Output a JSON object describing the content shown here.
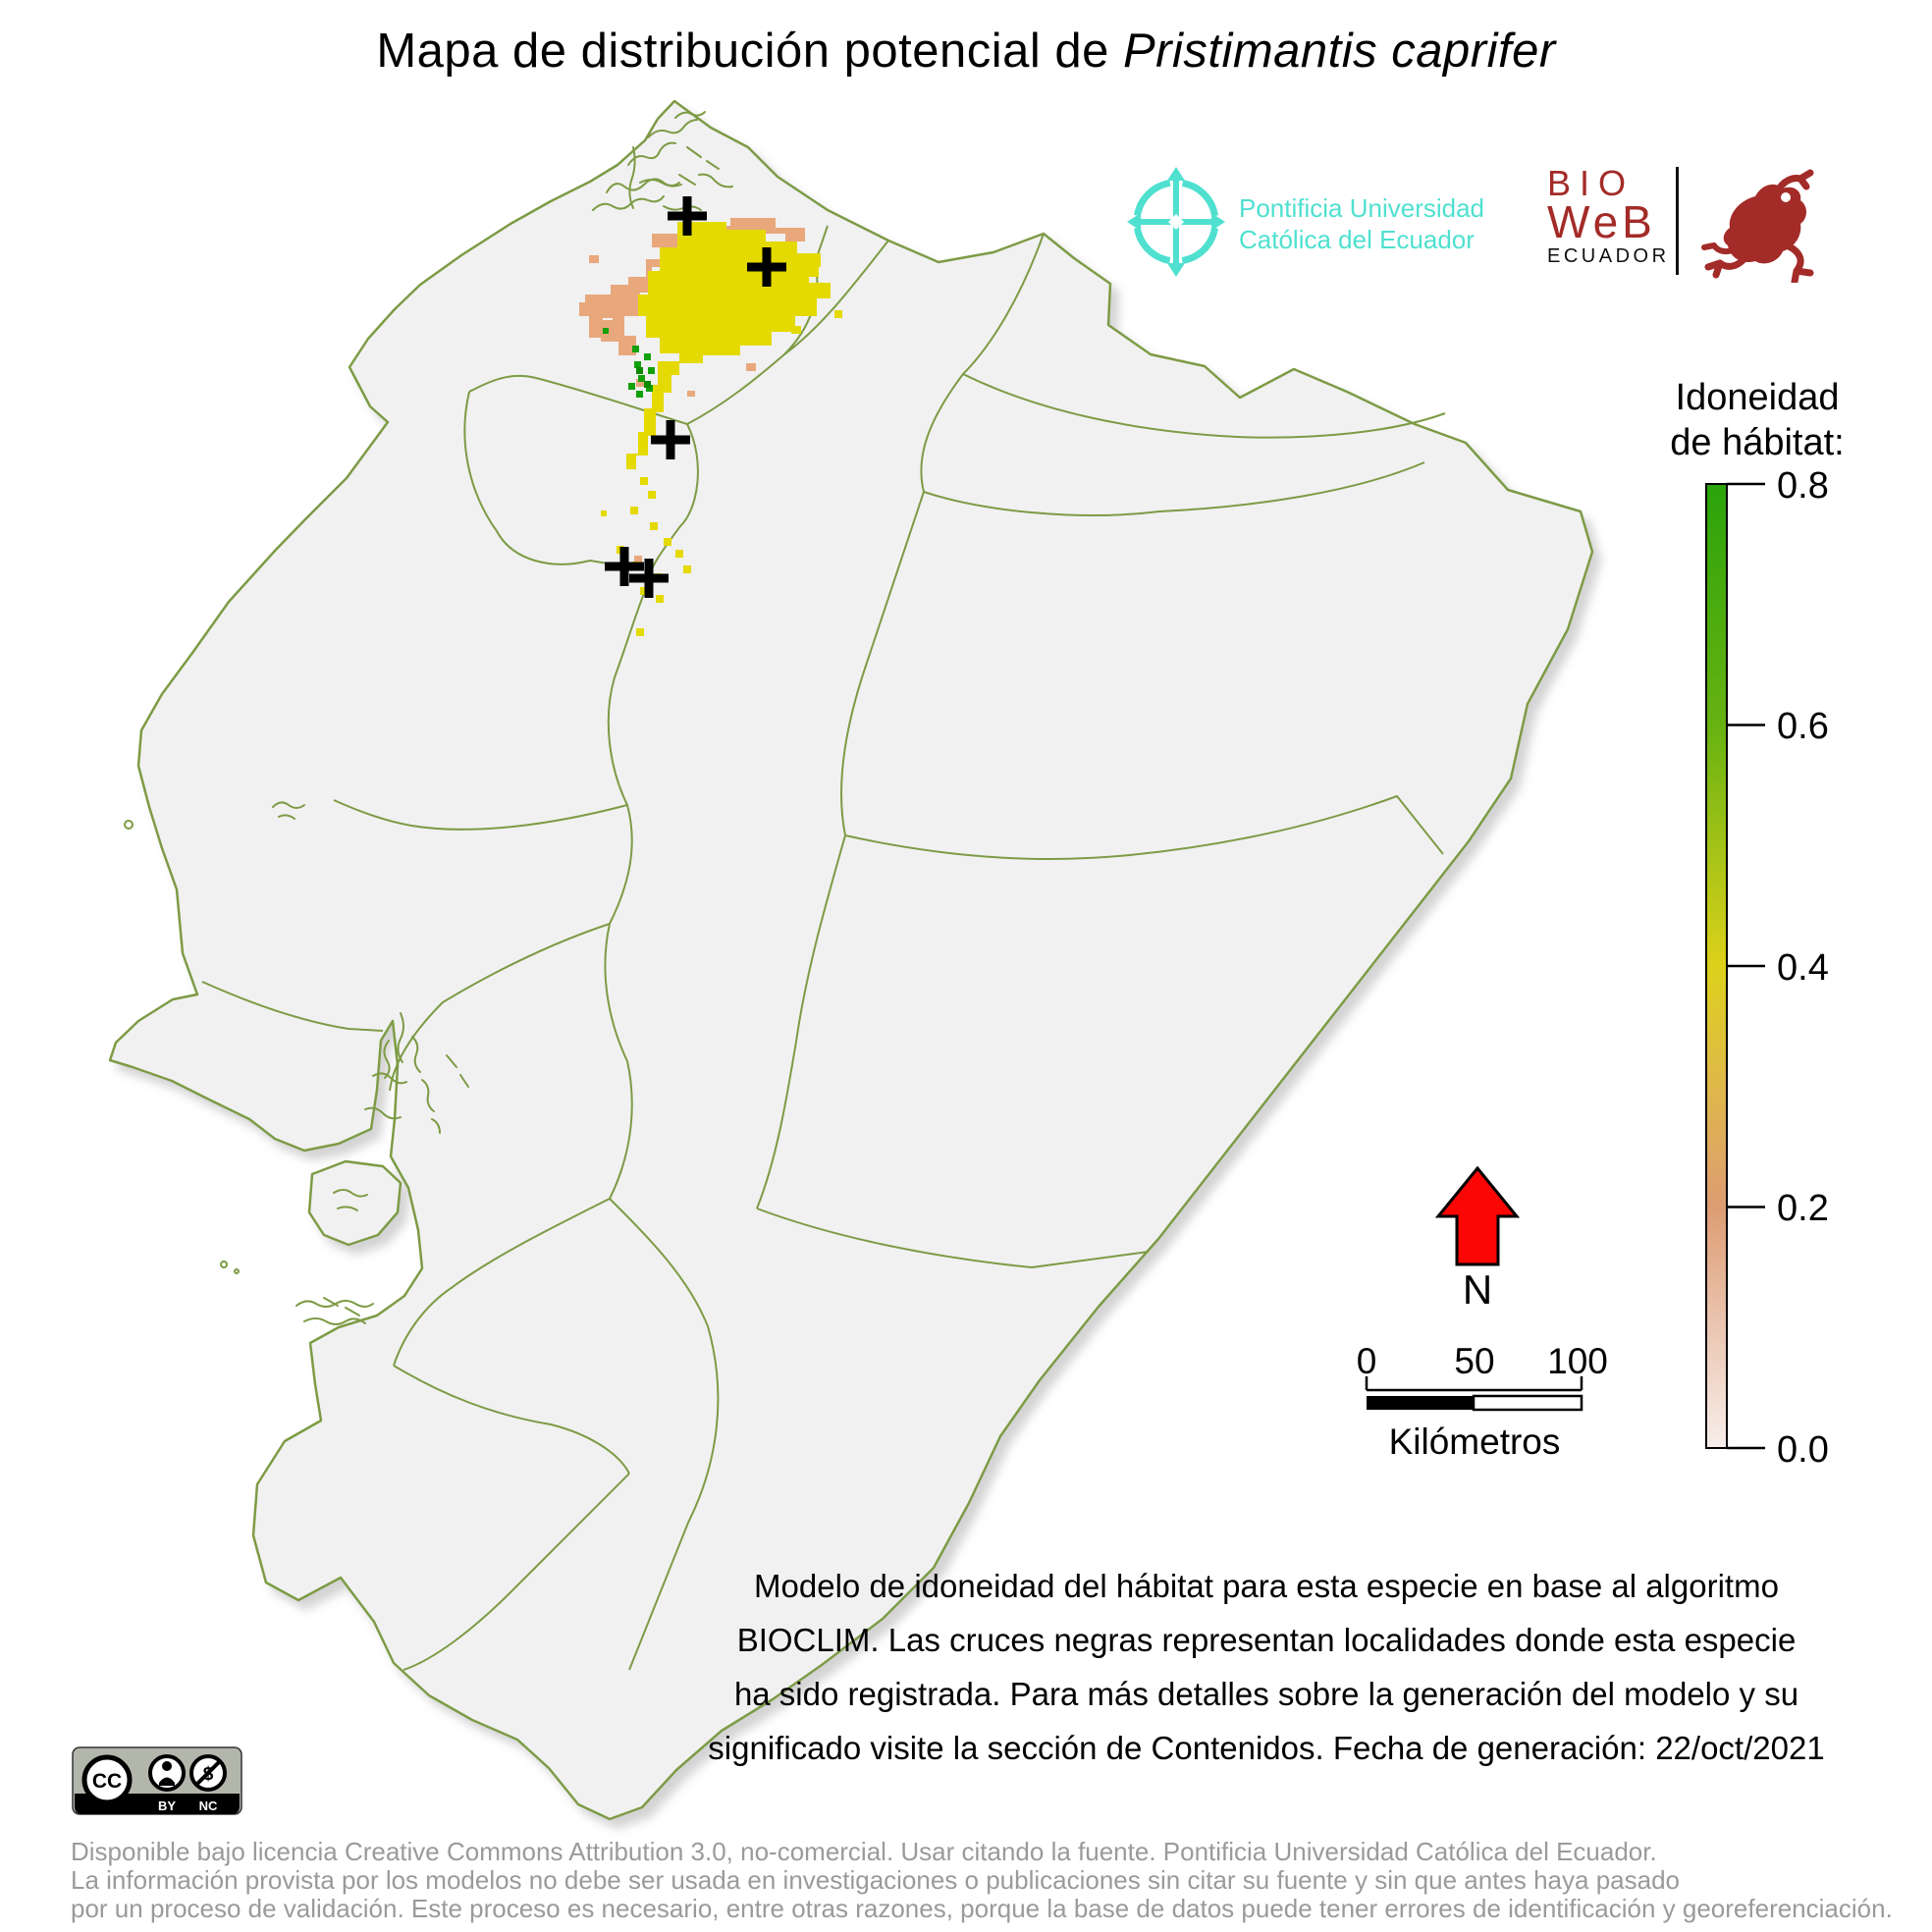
{
  "title": {
    "prefix": "Mapa de distribución potencial de ",
    "species": "Pristimantis caprifer"
  },
  "logos": {
    "puce": {
      "line1": "Pontificia Universidad",
      "line2": "Católica del Ecuador",
      "color": "#4fe0cf"
    },
    "bioweb": {
      "bio": "BIO",
      "web": "WeB",
      "ecuador": "ECUADOR",
      "color": "#a32b28"
    }
  },
  "legend": {
    "title_line1": "Idoneidad",
    "title_line2": "de hábitat:",
    "ticks": [
      "0.8",
      "0.6",
      "0.4",
      "0.2",
      "0.0"
    ],
    "gradient": [
      {
        "o": 0,
        "c": "#2aa30b"
      },
      {
        "o": 0.125,
        "c": "#4aab0e"
      },
      {
        "o": 0.25,
        "c": "#66b211"
      },
      {
        "o": 0.375,
        "c": "#a2c217"
      },
      {
        "o": 0.5,
        "c": "#ddd11b"
      },
      {
        "o": 0.625,
        "c": "#dfb84a"
      },
      {
        "o": 0.75,
        "c": "#dd9c72"
      },
      {
        "o": 0.875,
        "c": "#ebc6b2"
      },
      {
        "o": 1,
        "c": "#f7eeea"
      }
    ]
  },
  "north": {
    "label": "N",
    "arrow_color": "#fb0505"
  },
  "scalebar": {
    "tick0": "0",
    "tick50": "50",
    "tick100": "100",
    "unit": "Kilómetros"
  },
  "description": {
    "lines": [
      "Modelo de idoneidad del hábitat para esta especie en base al algoritmo",
      "BIOCLIM. Las cruces negras representan localidades donde esta especie",
      "ha sido registrada. Para más detalles sobre la generación del modelo y su",
      "significado visite la sección de Contenidos. Fecha de generación: 22/oct/2021"
    ]
  },
  "license": {
    "cc": "CC",
    "by": "BY",
    "nc": "NC",
    "dollar": "$"
  },
  "footer": {
    "lines": [
      "Disponible bajo licencia Creative Commons Attribution 3.0, no-comercial. Usar citando la fuente. Pontificia Universidad Católica del Ecuador.",
      "La información provista por los modelos no debe ser usada en investigaciones o publicaciones sin citar su fuente y sin que antes haya pasado",
      "por un proceso de validación. Este proceso es necesario, entre otras razones, porque la base de datos puede tener errores de identificación y georeferenciación."
    ]
  },
  "map": {
    "colors": {
      "country_fill": "#f1f1f1",
      "boundary": "#7d9b45",
      "suitability_mid": "#e4da00",
      "suitability_low": "#e8a87c",
      "suitability_high": "#12a00b",
      "suitability_high_dark": "#0b8a00",
      "cross": "#000000"
    },
    "crosses": [
      [
        700,
        220
      ],
      [
        781,
        272
      ],
      [
        683,
        448
      ],
      [
        636,
        577
      ],
      [
        661,
        589
      ]
    ]
  }
}
